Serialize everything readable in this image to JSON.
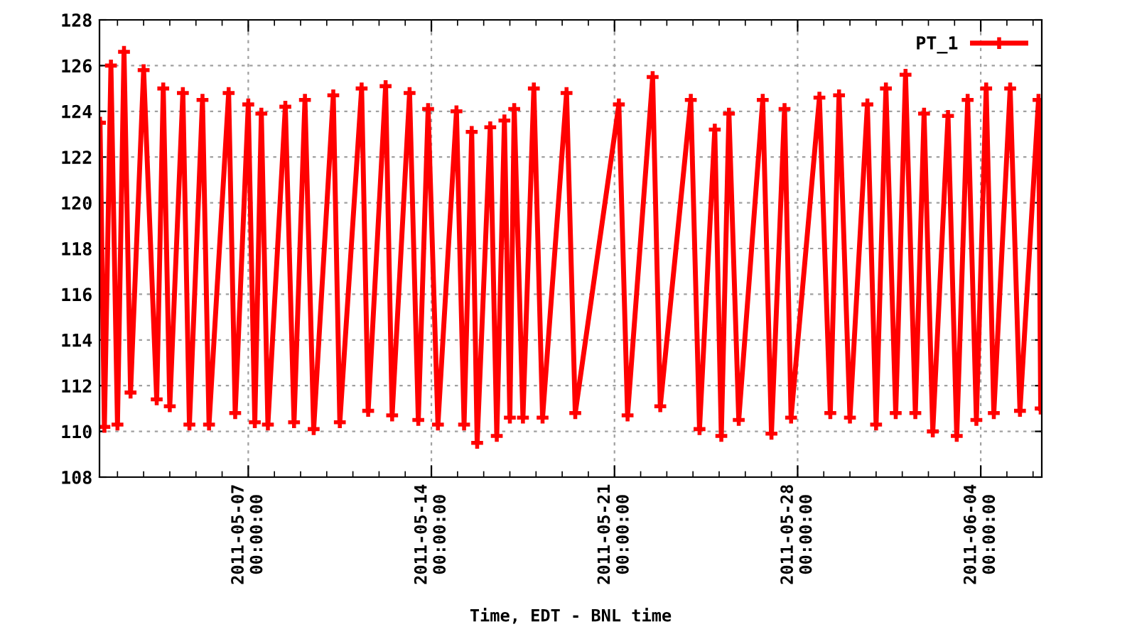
{
  "chart_data": {
    "type": "line",
    "xlabel": "Time, EDT - BNL time",
    "xlim": [
      "2011-05-01T07:30",
      "2011-06-06T08:00"
    ],
    "ylim": [
      108,
      128
    ],
    "yticks": [
      108,
      110,
      112,
      114,
      116,
      118,
      120,
      122,
      124,
      126,
      128
    ],
    "xticks": [
      {
        "value": "2011-05-02",
        "label": null
      },
      {
        "value": "2011-05-03",
        "label": null
      },
      {
        "value": "2011-05-04",
        "label": null
      },
      {
        "value": "2011-05-05",
        "label": null
      },
      {
        "value": "2011-05-06",
        "label": null
      },
      {
        "value": "2011-05-07",
        "label": "2011-05-07\n00:00:00"
      },
      {
        "value": "2011-05-08",
        "label": null
      },
      {
        "value": "2011-05-09",
        "label": null
      },
      {
        "value": "2011-05-10",
        "label": null
      },
      {
        "value": "2011-05-11",
        "label": null
      },
      {
        "value": "2011-05-12",
        "label": null
      },
      {
        "value": "2011-05-13",
        "label": null
      },
      {
        "value": "2011-05-14",
        "label": "2011-05-14\n00:00:00"
      },
      {
        "value": "2011-05-15",
        "label": null
      },
      {
        "value": "2011-05-16",
        "label": null
      },
      {
        "value": "2011-05-17",
        "label": null
      },
      {
        "value": "2011-05-18",
        "label": null
      },
      {
        "value": "2011-05-19",
        "label": null
      },
      {
        "value": "2011-05-20",
        "label": null
      },
      {
        "value": "2011-05-21",
        "label": "2011-05-21\n00:00:00"
      },
      {
        "value": "2011-05-22",
        "label": null
      },
      {
        "value": "2011-05-23",
        "label": null
      },
      {
        "value": "2011-05-24",
        "label": null
      },
      {
        "value": "2011-05-25",
        "label": null
      },
      {
        "value": "2011-05-26",
        "label": null
      },
      {
        "value": "2011-05-27",
        "label": null
      },
      {
        "value": "2011-05-28",
        "label": "2011-05-28\n00:00:00"
      },
      {
        "value": "2011-05-29",
        "label": null
      },
      {
        "value": "2011-05-30",
        "label": null
      },
      {
        "value": "2011-05-31",
        "label": null
      },
      {
        "value": "2011-06-01",
        "label": null
      },
      {
        "value": "2011-06-02",
        "label": null
      },
      {
        "value": "2011-06-03",
        "label": null
      },
      {
        "value": "2011-06-04",
        "label": "2011-06-04\n00:00:00"
      },
      {
        "value": "2011-06-05",
        "label": null
      },
      {
        "value": "2011-06-06",
        "label": null
      }
    ],
    "grid": true,
    "legend": "top right",
    "marker": "cross",
    "line_style": "solid",
    "series": [
      {
        "name": "PT_1",
        "color": "#ff0000",
        "x": [
          "2011-05-01T08:00",
          "2011-05-01T12:00",
          "2011-05-01T18:00",
          "2011-05-02T00:00",
          "2011-05-02T06:00",
          "2011-05-02T12:00",
          "2011-05-03T00:00",
          "2011-05-03T12:00",
          "2011-05-03T18:00",
          "2011-05-04T00:00",
          "2011-05-04T12:00",
          "2011-05-04T18:00",
          "2011-05-05T06:00",
          "2011-05-05T12:00",
          "2011-05-06T06:00",
          "2011-05-06T12:00",
          "2011-05-07T00:00",
          "2011-05-07T06:00",
          "2011-05-07T12:00",
          "2011-05-07T18:00",
          "2011-05-08T10:00",
          "2011-05-08T18:00",
          "2011-05-09T04:00",
          "2011-05-09T12:00",
          "2011-05-10T06:00",
          "2011-05-10T12:00",
          "2011-05-11T08:00",
          "2011-05-11T14:00",
          "2011-05-12T06:00",
          "2011-05-12T12:00",
          "2011-05-13T04:00",
          "2011-05-13T12:00",
          "2011-05-13T21:00",
          "2011-05-14T06:00",
          "2011-05-14T23:00",
          "2011-05-15T06:00",
          "2011-05-15T13:00",
          "2011-05-15T18:00",
          "2011-05-16T06:00",
          "2011-05-16T12:00",
          "2011-05-16T19:00",
          "2011-05-17T00:00",
          "2011-05-17T04:00",
          "2011-05-17T12:00",
          "2011-05-17T22:00",
          "2011-05-18T06:00",
          "2011-05-19T04:00",
          "2011-05-19T12:00",
          "2011-05-21T04:00",
          "2011-05-21T12:00",
          "2011-05-22T11:00",
          "2011-05-22T18:00",
          "2011-05-23T22:00",
          "2011-05-24T06:00",
          "2011-05-24T20:00",
          "2011-05-25T02:00",
          "2011-05-25T09:00",
          "2011-05-25T18:00",
          "2011-05-26T16:00",
          "2011-05-27T00:00",
          "2011-05-27T12:00",
          "2011-05-27T18:00",
          "2011-05-28T20:00",
          "2011-05-29T06:00",
          "2011-05-29T14:00",
          "2011-05-30T00:00",
          "2011-05-30T16:00",
          "2011-05-31T00:00",
          "2011-05-31T09:00",
          "2011-05-31T18:00",
          "2011-06-01T03:00",
          "2011-06-01T12:00",
          "2011-06-01T20:00",
          "2011-06-02T04:00",
          "2011-06-02T18:00",
          "2011-06-03T02:00",
          "2011-06-03T12:00",
          "2011-06-03T20:00",
          "2011-06-04T05:00",
          "2011-06-04T12:00",
          "2011-06-05T03:00",
          "2011-06-05T12:00",
          "2011-06-06T05:00",
          "2011-06-06T07:00"
        ],
        "values": [
          123.5,
          110.2,
          126.0,
          110.3,
          126.6,
          111.7,
          125.8,
          111.4,
          125.0,
          111.1,
          124.8,
          110.3,
          124.5,
          110.3,
          124.8,
          110.8,
          124.3,
          110.4,
          123.9,
          110.3,
          124.2,
          110.4,
          124.5,
          110.1,
          124.7,
          110.4,
          125.0,
          110.9,
          125.1,
          110.7,
          124.8,
          110.5,
          124.1,
          110.3,
          124.0,
          110.3,
          123.1,
          109.5,
          123.3,
          109.8,
          123.6,
          110.6,
          124.1,
          110.6,
          125.0,
          110.6,
          124.8,
          110.8,
          124.3,
          110.7,
          125.5,
          111.1,
          124.5,
          110.1,
          123.2,
          109.8,
          123.9,
          110.5,
          124.5,
          109.9,
          124.1,
          110.6,
          124.6,
          110.8,
          124.7,
          110.6,
          124.3,
          110.3,
          125.0,
          110.8,
          125.6,
          110.8,
          123.9,
          110.0,
          123.8,
          109.8,
          124.5,
          110.5,
          125.0,
          110.8,
          125.0,
          110.9,
          124.5,
          111.0
        ]
      }
    ]
  }
}
